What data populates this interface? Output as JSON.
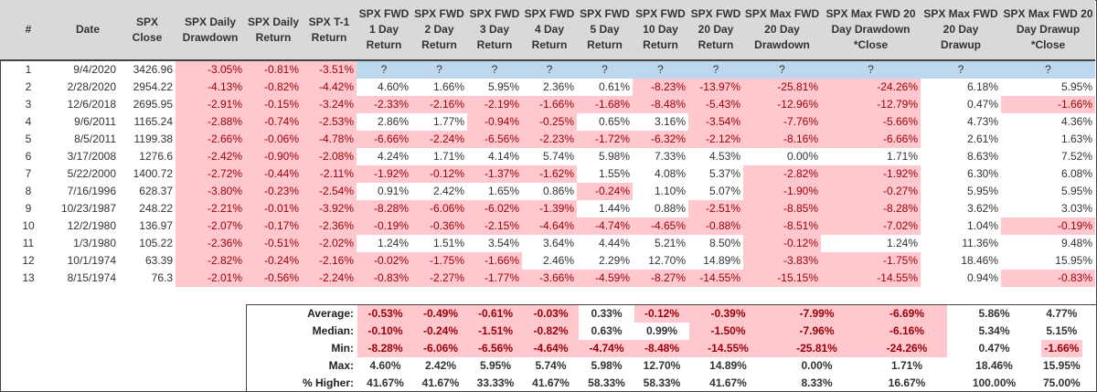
{
  "headers": [
    "#",
    "Date",
    "SPX Close",
    "SPX Daily Drawdown",
    "SPX Daily Return",
    "SPX T-1 Return",
    "SPX FWD 1 Day Return",
    "SPX FWD 2 Day Return",
    "SPX FWD 3 Day Return",
    "SPX FWD 4 Day Return",
    "SPX FWD 5 Day Return",
    "SPX FWD 10 Day Return",
    "SPX FWD 20 Day Return",
    "SPX Max FWD 20 Day Drawdown",
    "SPX Max FWD 20 Day Drawdown *Close",
    "SPX Max FWD 20 Day Drawup",
    "SPX Max FWD 20 Day Drawup *Close"
  ],
  "rows": [
    [
      "1",
      "9/4/2020",
      "3426.96",
      "-3.05%",
      "-0.81%",
      "-3.51%",
      "?",
      "?",
      "?",
      "?",
      "?",
      "?",
      "?",
      "?",
      "?",
      "?",
      "?"
    ],
    [
      "2",
      "2/28/2020",
      "2954.22",
      "-4.13%",
      "-0.82%",
      "-4.42%",
      "4.60%",
      "1.66%",
      "5.95%",
      "2.36%",
      "0.61%",
      "-8.23%",
      "-13.97%",
      "-25.81%",
      "-24.26%",
      "6.18%",
      "5.95%"
    ],
    [
      "3",
      "12/6/2018",
      "2695.95",
      "-2.91%",
      "-0.15%",
      "-3.24%",
      "-2.33%",
      "-2.16%",
      "-2.19%",
      "-1.66%",
      "-1.68%",
      "-8.48%",
      "-5.43%",
      "-12.96%",
      "-12.79%",
      "0.47%",
      "-1.66%"
    ],
    [
      "4",
      "9/6/2011",
      "1165.24",
      "-2.88%",
      "-0.74%",
      "-2.53%",
      "2.86%",
      "1.77%",
      "-0.94%",
      "-0.25%",
      "0.65%",
      "3.16%",
      "-3.54%",
      "-7.76%",
      "-5.66%",
      "4.73%",
      "4.36%"
    ],
    [
      "5",
      "8/5/2011",
      "1199.38",
      "-2.66%",
      "-0.06%",
      "-4.78%",
      "-6.66%",
      "-2.24%",
      "-6.56%",
      "-2.23%",
      "-1.72%",
      "-6.32%",
      "-2.12%",
      "-8.16%",
      "-6.66%",
      "2.61%",
      "1.63%"
    ],
    [
      "6",
      "3/17/2008",
      "1276.6",
      "-2.42%",
      "-0.90%",
      "-2.08%",
      "4.24%",
      "1.71%",
      "4.14%",
      "5.74%",
      "5.98%",
      "7.33%",
      "4.53%",
      "0.00%",
      "1.71%",
      "8.63%",
      "7.52%"
    ],
    [
      "7",
      "5/22/2000",
      "1400.72",
      "-2.72%",
      "-0.44%",
      "-2.11%",
      "-1.92%",
      "-0.12%",
      "-1.37%",
      "-1.62%",
      "1.55%",
      "4.08%",
      "5.37%",
      "-2.82%",
      "-1.92%",
      "6.30%",
      "6.08%"
    ],
    [
      "8",
      "7/16/1996",
      "628.37",
      "-3.80%",
      "-0.23%",
      "-2.54%",
      "0.91%",
      "2.42%",
      "1.65%",
      "0.86%",
      "-0.24%",
      "1.10%",
      "5.07%",
      "-1.90%",
      "-0.27%",
      "5.95%",
      "5.95%"
    ],
    [
      "9",
      "10/23/1987",
      "248.22",
      "-2.21%",
      "-0.01%",
      "-3.92%",
      "-8.28%",
      "-6.06%",
      "-6.02%",
      "-1.39%",
      "1.44%",
      "0.88%",
      "-2.51%",
      "-8.85%",
      "-8.28%",
      "3.62%",
      "3.03%"
    ],
    [
      "10",
      "12/2/1980",
      "136.97",
      "-2.07%",
      "-0.17%",
      "-2.36%",
      "-0.19%",
      "-0.36%",
      "-2.15%",
      "-4.64%",
      "-4.74%",
      "-4.65%",
      "-0.88%",
      "-8.51%",
      "-7.02%",
      "1.04%",
      "-0.19%"
    ],
    [
      "11",
      "1/3/1980",
      "105.22",
      "-2.36%",
      "-0.51%",
      "-2.02%",
      "1.24%",
      "1.51%",
      "3.54%",
      "3.64%",
      "4.44%",
      "5.21%",
      "8.50%",
      "-0.12%",
      "1.24%",
      "11.36%",
      "9.48%"
    ],
    [
      "12",
      "10/1/1974",
      "63.39",
      "-2.82%",
      "-0.24%",
      "-2.16%",
      "-0.02%",
      "-1.75%",
      "-1.66%",
      "2.46%",
      "2.29%",
      "12.70%",
      "14.89%",
      "-3.83%",
      "-1.75%",
      "18.46%",
      "15.95%"
    ],
    [
      "13",
      "8/15/1974",
      "76.3",
      "-2.01%",
      "-0.56%",
      "-2.24%",
      "-0.83%",
      "-2.27%",
      "-1.77%",
      "-3.66%",
      "-4.59%",
      "-8.27%",
      "-14.55%",
      "-15.15%",
      "-14.55%",
      "0.94%",
      "-0.83%"
    ]
  ],
  "summary": [
    {
      "label": "Average:",
      "values": [
        "-0.53%",
        "-0.49%",
        "-0.61%",
        "-0.03%",
        "0.33%",
        "-0.12%",
        "-0.39%",
        "-7.99%",
        "-6.69%",
        "5.86%",
        "4.77%"
      ]
    },
    {
      "label": "Median:",
      "values": [
        "-0.10%",
        "-0.24%",
        "-1.51%",
        "-0.82%",
        "0.63%",
        "0.99%",
        "-1.50%",
        "-7.96%",
        "-6.16%",
        "5.34%",
        "5.15%"
      ]
    },
    {
      "label": "Min:",
      "values": [
        "-8.28%",
        "-6.06%",
        "-6.56%",
        "-4.64%",
        "-4.74%",
        "-8.48%",
        "-14.55%",
        "-25.81%",
        "-24.26%",
        "0.47%",
        "-1.66%"
      ]
    },
    {
      "label": "Max:",
      "values": [
        "4.60%",
        "2.42%",
        "5.95%",
        "5.74%",
        "5.98%",
        "12.70%",
        "14.89%",
        "0.00%",
        "1.71%",
        "18.46%",
        "15.95%"
      ]
    },
    {
      "label": "% Higher:",
      "values": [
        "41.67%",
        "41.67%",
        "33.33%",
        "41.67%",
        "58.33%",
        "58.33%",
        "41.67%",
        "8.33%",
        "16.67%",
        "100.00%",
        "75.00%"
      ]
    }
  ],
  "colors": {
    "negative_bg": "#ffc7ce",
    "negative_text": "#9c0006",
    "pending_bg": "#bdd7ee",
    "header_bg": "#d9d9d9"
  }
}
